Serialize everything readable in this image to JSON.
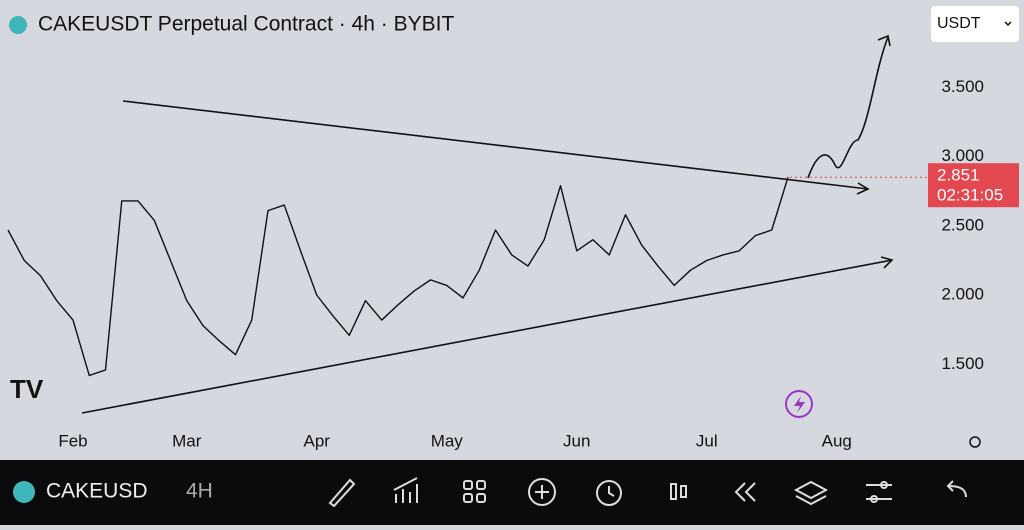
{
  "chart_data": {
    "type": "line",
    "title": "CAKEUSDT Perpetual Contract · 4h · BYBIT",
    "currency": "USDT",
    "categories": [
      null,
      null,
      null,
      null,
      "Feb",
      null,
      null,
      null,
      null,
      null,
      null,
      "Mar",
      null,
      null,
      null,
      null,
      null,
      null,
      null,
      "Apr",
      null,
      null,
      null,
      null,
      null,
      null,
      null,
      "May",
      null,
      null,
      null,
      null,
      null,
      null,
      null,
      "Jun",
      null,
      null,
      null,
      null,
      null,
      null,
      null,
      "Jul",
      null,
      null,
      null,
      null,
      null,
      null,
      null,
      "Aug"
    ],
    "series": [
      {
        "name": "CAKEUSDT",
        "color": "#111111",
        "values": [
          2.47,
          2.25,
          2.14,
          1.96,
          1.82,
          1.42,
          1.46,
          2.68,
          2.68,
          2.54,
          2.25,
          1.96,
          1.78,
          1.67,
          1.57,
          1.82,
          2.61,
          2.65,
          2.32,
          2.0,
          1.85,
          1.71,
          1.96,
          1.82,
          1.93,
          2.03,
          2.11,
          2.07,
          1.98,
          2.18,
          2.47,
          2.29,
          2.21,
          2.4,
          2.79,
          2.32,
          2.4,
          2.29,
          2.58,
          2.36,
          2.21,
          2.07,
          2.18,
          2.25,
          2.29,
          2.32,
          2.43,
          2.47,
          2.851,
          null,
          null,
          null
        ]
      }
    ],
    "ylim": [
      0.81,
      4.13
    ],
    "yticks": [
      {
        "value": 1.5,
        "label": "1.500"
      },
      {
        "value": 2,
        "label": "2.000"
      },
      {
        "value": 2.5,
        "label": "2.500"
      },
      {
        "value": 3,
        "label": "3.000"
      },
      {
        "value": 3.5,
        "label": "3.500"
      }
    ],
    "last_price": {
      "value": 2.851,
      "label": "2.851"
    },
    "countdown": "02:31:05",
    "grid": false
  },
  "toolbar": {
    "symbol": "CAKEUSD",
    "interval": "4H"
  }
}
